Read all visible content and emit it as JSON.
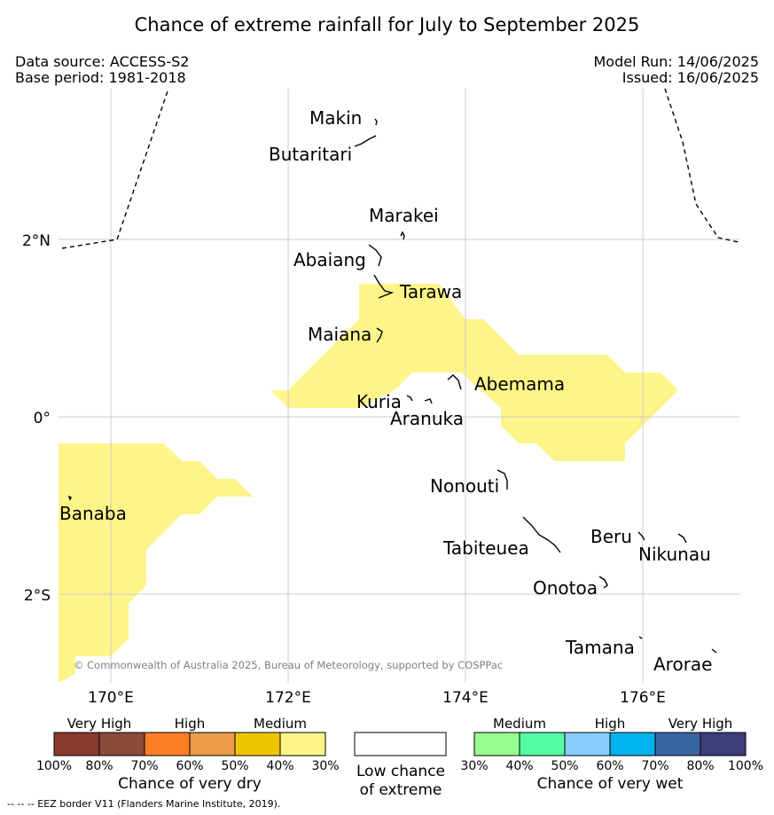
{
  "title": "Chance of extreme rainfall for July to September 2025",
  "data_source": "Data source: ACCESS-S2",
  "base_period": "Base period: 1981-2018",
  "model_run": "Model Run: 14/06/2025",
  "issued": "Issued: 16/06/2025",
  "copyright": "© Commonwealth of Australia 2025, Bureau of Meteorology, supported by COSPPac",
  "axes": {
    "lat_labels": [
      "2°N",
      "0°",
      "2°S"
    ],
    "lon_labels": [
      "170°E",
      "172°E",
      "174°E",
      "176°E"
    ]
  },
  "places": [
    "Makin",
    "Butaritari",
    "Marakei",
    "Abaiang",
    "Tarawa",
    "Maiana",
    "Abemama",
    "Kuria",
    "Aranuka",
    "Banaba",
    "Nonouti",
    "Tabiteuea",
    "Beru",
    "Nikunau",
    "Onotoa",
    "Tamana",
    "Arorae"
  ],
  "dry_legend": {
    "levels": [
      "Very High",
      "High",
      "Medium"
    ],
    "ticks": [
      "100%",
      "80%",
      "70%",
      "60%",
      "50%",
      "40%",
      "30%"
    ],
    "colors": [
      "#8b3a2e",
      "#8a4b36",
      "#fd7f25",
      "#ec9b47",
      "#eec600",
      "#fdf58a"
    ],
    "caption": "Chance of very dry"
  },
  "low_legend": {
    "line1": "Low chance",
    "line2": "of extreme",
    "color": "#ffffff"
  },
  "wet_legend": {
    "levels": [
      "Medium",
      "High",
      "Very High"
    ],
    "ticks": [
      "30%",
      "40%",
      "50%",
      "60%",
      "70%",
      "80%",
      "100%"
    ],
    "colors": [
      "#96fd91",
      "#52fda3",
      "#88cdfd",
      "#00b2ed",
      "#3a65a3",
      "#3d3d7b"
    ],
    "caption": "Chance of very wet"
  },
  "footnote": "--  --  -- EEZ border V11 (Flanders Marine Institute, 2019).",
  "map_colors": {
    "dry_medium_area": "#fdf58a",
    "grid": "#cccccc",
    "coast": "#000000"
  }
}
